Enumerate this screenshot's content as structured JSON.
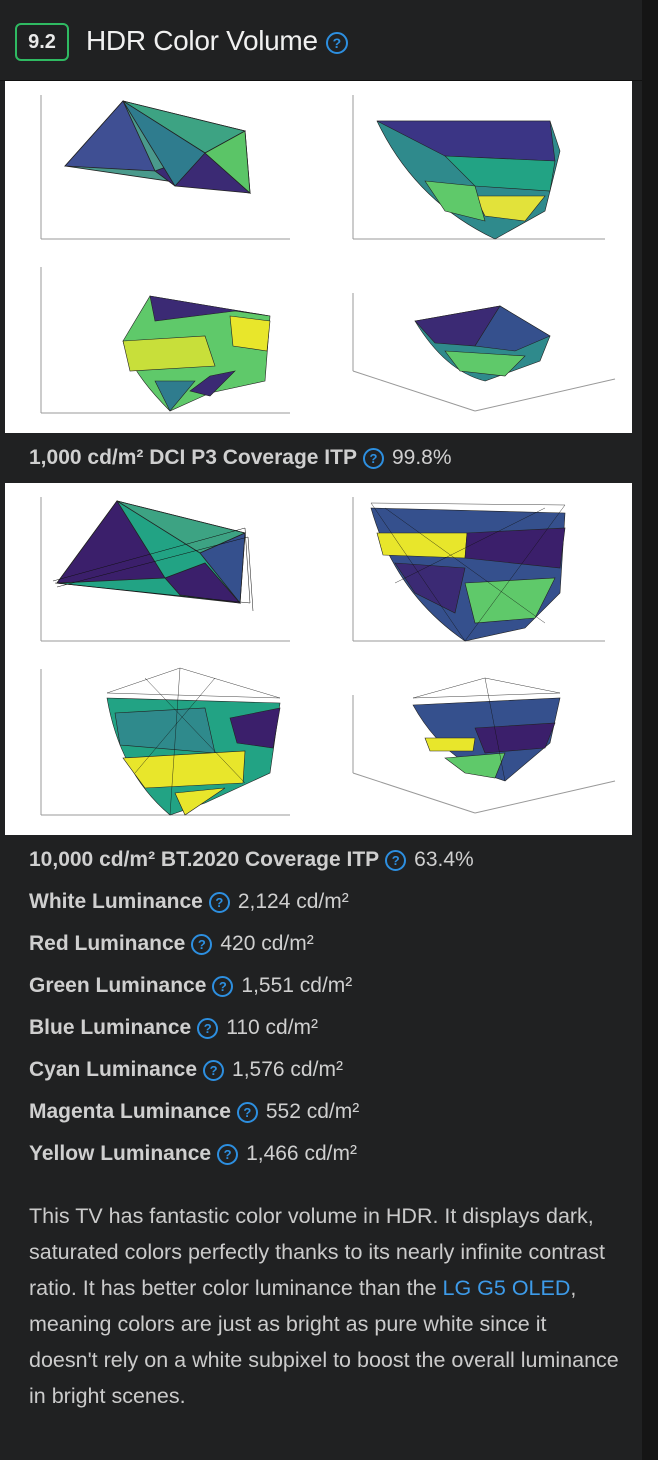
{
  "header": {
    "score": "9.2",
    "title": "HDR Color Volume",
    "help_symbol": "?"
  },
  "plots": [
    {
      "caption_label": "1,000 cd/m² DCI P3 Coverage ITP",
      "caption_value": "99.8%"
    },
    {
      "caption_label": "10,000 cd/m² BT.2020 Coverage ITP",
      "caption_value": "63.4%"
    }
  ],
  "metrics": [
    {
      "label": "White Luminance",
      "value": "2,124 cd/m²"
    },
    {
      "label": "Red Luminance",
      "value": "420 cd/m²"
    },
    {
      "label": "Green Luminance",
      "value": "1,551 cd/m²"
    },
    {
      "label": "Blue Luminance",
      "value": "110 cd/m²"
    },
    {
      "label": "Cyan Luminance",
      "value": "1,576 cd/m²"
    },
    {
      "label": "Magenta Luminance",
      "value": "552 cd/m²"
    },
    {
      "label": "Yellow Luminance",
      "value": "1,466 cd/m²"
    }
  ],
  "description": {
    "before": "This TV has fantastic color volume in HDR. It displays dark, saturated colors perfectly thanks to its nearly infinite contrast ratio. It has better color luminance than the ",
    "link": "LG G5 OLED",
    "after": ", meaning colors are just as bright as pure white since it doesn't rely on a white subpixel to boost the overall luminance in bright scenes."
  },
  "colors": {
    "accent": "#2d8fe0",
    "score_border": "#2fba62",
    "link": "#3d9be9",
    "viridis_dark": "#3b1f6b",
    "viridis_blue": "#35508d",
    "viridis_teal": "#22a384",
    "viridis_green": "#5fc96a",
    "viridis_yellow": "#e8e62b"
  }
}
